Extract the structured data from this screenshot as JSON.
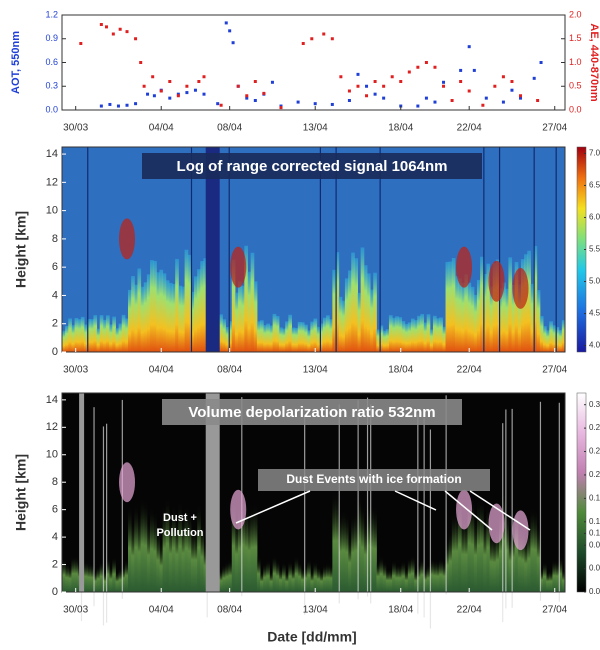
{
  "chart_data": [
    {
      "type": "scatter",
      "ylabel": "AOT, 550nm",
      "y2label": "AE, 440-870nm",
      "xlim": [
        -0.8,
        28.6
      ],
      "xticks": [
        {
          "value": 0,
          "label": "30/03"
        },
        {
          "value": 5,
          "label": "04/04"
        },
        {
          "value": 9,
          "label": "08/04"
        },
        {
          "value": 14,
          "label": "13/04"
        },
        {
          "value": 19,
          "label": "18/04"
        },
        {
          "value": 23,
          "label": "22/04"
        },
        {
          "value": 28,
          "label": "27/04"
        }
      ],
      "ylim": [
        0,
        1.2
      ],
      "yticks": [
        {
          "value": 0,
          "label": "0.0"
        },
        0.3,
        0.6,
        0.9,
        1.2
      ],
      "y2lim": [
        0,
        2
      ],
      "y2ticks": [
        {
          "value": 0,
          "label": "0.0"
        },
        0.5,
        {
          "value": 1,
          "label": "1.0"
        },
        1.5,
        {
          "value": 2,
          "label": "2.0"
        }
      ],
      "series": [
        {
          "name": "AOT",
          "color": "#1f3fd6",
          "x": [
            1.5,
            2,
            2.5,
            3,
            3.5,
            4.2,
            4.6,
            5,
            5.5,
            6,
            6.5,
            7,
            7.5,
            8.3,
            8.8,
            9,
            9.2,
            9.5,
            10,
            10.5,
            11,
            11.5,
            12,
            13,
            14,
            15,
            16,
            16.5,
            17,
            17.5,
            18,
            19,
            20,
            20.5,
            21,
            21.5,
            22.5,
            23,
            23.3,
            24,
            25,
            25.5,
            26,
            26.8,
            27.2
          ],
          "values": [
            0.05,
            0.07,
            0.05,
            0.06,
            0.08,
            0.2,
            0.18,
            0.25,
            0.15,
            0.2,
            0.22,
            0.25,
            0.2,
            0.08,
            1.1,
            1.0,
            0.85,
            0.3,
            0.15,
            0.12,
            0.2,
            0.35,
            0.05,
            0.1,
            0.08,
            0.07,
            0.12,
            0.45,
            0.3,
            0.2,
            0.15,
            0.05,
            0.05,
            0.15,
            0.1,
            0.35,
            0.5,
            0.8,
            0.5,
            0.15,
            0.1,
            0.25,
            0.15,
            0.4,
            0.6
          ]
        },
        {
          "name": "AE",
          "color": "#e02020",
          "axis": "y2",
          "x": [
            0.3,
            1.5,
            1.8,
            2.2,
            2.6,
            3,
            3.5,
            3.8,
            4,
            4.5,
            5,
            5.5,
            6,
            6.5,
            7.2,
            7.5,
            8.5,
            9.5,
            10,
            10.5,
            11,
            12,
            13.3,
            13.8,
            14.5,
            15,
            15.5,
            16,
            16.5,
            17,
            17.5,
            18,
            18.5,
            19,
            19.5,
            20,
            20.5,
            21,
            21.5,
            22,
            22.5,
            23,
            23.8,
            24.5,
            25,
            25.5,
            26,
            27
          ],
          "values": [
            1.4,
            1.8,
            1.75,
            1.6,
            1.7,
            1.65,
            1.5,
            1.0,
            0.5,
            0.7,
            0.4,
            0.6,
            0.3,
            0.5,
            0.6,
            0.7,
            0.1,
            0.5,
            0.3,
            0.6,
            0.35,
            0.05,
            1.4,
            1.5,
            1.6,
            1.5,
            0.7,
            0.4,
            0.5,
            0.3,
            0.6,
            0.5,
            0.7,
            0.6,
            0.8,
            0.9,
            1.0,
            0.9,
            0.5,
            0.2,
            0.6,
            0.4,
            0.1,
            0.5,
            0.7,
            0.6,
            0.3,
            0.2
          ]
        }
      ]
    },
    {
      "type": "heatmap",
      "title": "Log of range corrected signal 1064nm",
      "ylabel": "Height [km]",
      "xlim": [
        -0.8,
        28.6
      ],
      "xticks": [
        {
          "value": 0,
          "label": "30/03"
        },
        {
          "value": 5,
          "label": "04/04"
        },
        {
          "value": 9,
          "label": "08/04"
        },
        {
          "value": 14,
          "label": "13/04"
        },
        {
          "value": 19,
          "label": "18/04"
        },
        {
          "value": 23,
          "label": "22/04"
        },
        {
          "value": 28,
          "label": "27/04"
        }
      ],
      "ylim": [
        0,
        14.5
      ],
      "yticks": [
        0,
        2,
        4,
        6,
        8,
        10,
        12,
        14
      ],
      "clim": [
        3.9,
        7.1
      ],
      "cticks": [
        {
          "value": 4,
          "label": "4.0"
        },
        4.5,
        {
          "value": 5,
          "label": "5.0"
        },
        5.5,
        {
          "value": 6,
          "label": "6.0"
        },
        6.5,
        {
          "value": 7,
          "label": "7.0"
        }
      ]
    },
    {
      "type": "heatmap",
      "title": "Volume depolarization ratio 532nm",
      "ylabel": "Height [km]",
      "xlabel": "Date [dd/mm]",
      "annotations": [
        "Dust Events with  ice formation",
        "Dust +",
        "Pollution"
      ],
      "xlim": [
        -0.8,
        28.6
      ],
      "xticks": [
        {
          "value": 0,
          "label": "30/03"
        },
        {
          "value": 5,
          "label": "04/04"
        },
        {
          "value": 9,
          "label": "08/04"
        },
        {
          "value": 14,
          "label": "13/04"
        },
        {
          "value": 19,
          "label": "18/04"
        },
        {
          "value": 23,
          "label": "22/04"
        },
        {
          "value": 28,
          "label": "27/04"
        }
      ],
      "ylim": [
        0,
        14.5
      ],
      "yticks": [
        0,
        2,
        4,
        6,
        8,
        10,
        12,
        14
      ],
      "clim": [
        0,
        0.34
      ],
      "cticks": [
        {
          "value": 0,
          "label": "0.00"
        },
        0.04,
        0.08,
        {
          "value": 0.1,
          "label": "0.10"
        },
        0.12,
        0.16,
        {
          "value": 0.2,
          "label": "0.20"
        },
        0.24,
        0.28,
        0.32
      ]
    }
  ]
}
